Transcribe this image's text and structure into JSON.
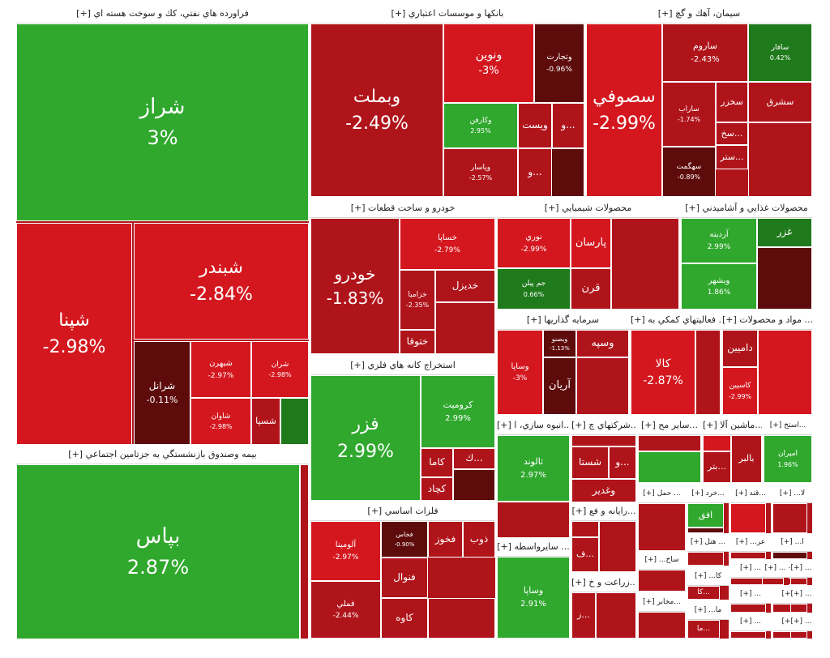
{
  "chart_data": {
    "type": "treemap",
    "colors": {
      "strong_green": "#2fa82d",
      "dark_green": "#1f7a1c",
      "red": "#b0141b",
      "bright_red": "#d4171f",
      "dark_red": "#5e0b0b",
      "border": "#ffffff"
    },
    "sectors": [
      {
        "id": "s1",
        "label": "[+] فراورده هاي نفتي، كك و سوخت هسته اي",
        "cells": [
          {
            "sym": "شراز",
            "pct": "3%",
            "value": 3
          },
          {
            "sym": "شپنا",
            "pct": "-2.98%",
            "value": -2.98
          },
          {
            "sym": "شبندر",
            "pct": "-2.84%",
            "value": -2.84
          },
          {
            "sym": "شرانل",
            "pct": "-0.11%",
            "value": -0.11
          },
          {
            "sym": "شبهرن",
            "pct": "-2.97%",
            "value": -2.97
          },
          {
            "sym": "شاوان",
            "pct": "-2.98%",
            "value": -2.98
          },
          {
            "sym": "شران",
            "pct": "-2.98%",
            "value": -2.98
          },
          {
            "sym": "شسپا",
            "pct": "",
            "value": -2.5
          }
        ]
      },
      {
        "id": "s2",
        "label": "[+] بيمه وصندوق بازنشستگي به جزتامين اجتماعي",
        "cells": [
          {
            "sym": "بپاس",
            "pct": "2.87%",
            "value": 2.87
          }
        ]
      },
      {
        "id": "s3",
        "label": "[+] بانكها و موسسات اعتباري",
        "cells": [
          {
            "sym": "وبملت",
            "pct": "-2.49%",
            "value": -2.49
          },
          {
            "sym": "ونوين",
            "pct": "-3%",
            "value": -3
          },
          {
            "sym": "وتجارت",
            "pct": "-0.96%",
            "value": -0.96
          },
          {
            "sym": "وكارفن",
            "pct": "2.95%",
            "value": 2.95
          },
          {
            "sym": "ويست",
            "pct": "",
            "value": -2.6
          },
          {
            "sym": "و...",
            "pct": "",
            "value": -2.4
          },
          {
            "sym": "وپاسار",
            "pct": "-2.57%",
            "value": -2.57
          },
          {
            "sym": "و...",
            "pct": "",
            "value": -2.4
          }
        ]
      },
      {
        "id": "s4",
        "label": "[+] سيمان، آهك و گچ",
        "cells": [
          {
            "sym": "سصوفي",
            "pct": "-2.99%",
            "value": -2.99
          },
          {
            "sym": "ساروم",
            "pct": "-2.43%",
            "value": -2.43
          },
          {
            "sym": "سافار",
            "pct": "0.42%",
            "value": 0.42
          },
          {
            "sym": "سخزر",
            "pct": "",
            "value": -2.5
          },
          {
            "sym": "سشرق",
            "pct": "",
            "value": -2.6
          },
          {
            "sym": "ساراب",
            "pct": "-1.74%",
            "value": -1.74
          },
          {
            "sym": "سخ...",
            "pct": "",
            "value": -2.3
          },
          {
            "sym": "ستر...",
            "pct": "",
            "value": -2.4
          },
          {
            "sym": "سهگمت",
            "pct": "-0.89%",
            "value": -0.89
          }
        ]
      },
      {
        "id": "s5",
        "label": "[+] خودرو و ساخت قطعات",
        "cells": [
          {
            "sym": "خودرو",
            "pct": "-1.83%",
            "value": -1.83
          },
          {
            "sym": "خساپا",
            "pct": "-2.79%",
            "value": -2.79
          },
          {
            "sym": "خديزل",
            "pct": "",
            "value": -2.6
          },
          {
            "sym": "خزاميا",
            "pct": "-2.35%",
            "value": -2.35
          },
          {
            "sym": "ختوقا",
            "pct": "",
            "value": -2.5
          }
        ]
      },
      {
        "id": "s6",
        "label": "[+] محصولات شيميايي",
        "cells": [
          {
            "sym": "نوري",
            "pct": "-2.99%",
            "value": -2.99
          },
          {
            "sym": "پارسان",
            "pct": "",
            "value": -2.7
          },
          {
            "sym": "جم پيلن",
            "pct": "0.66%",
            "value": 0.66
          },
          {
            "sym": "قرن",
            "pct": "",
            "value": -2.5
          }
        ]
      },
      {
        "id": "s7",
        "label": "[+] محصولات غذايي و آشاميدني",
        "cells": [
          {
            "sym": "آردينه",
            "pct": "2.99%",
            "value": 2.99
          },
          {
            "sym": "غزر",
            "pct": "",
            "value": 0.9
          },
          {
            "sym": "وبشهر",
            "pct": "1.86%",
            "value": 1.86
          }
        ]
      },
      {
        "id": "s8",
        "label": "[+] سرمايه گذاريها",
        "cells": [
          {
            "sym": "وساپا",
            "pct": "-3%",
            "value": -3
          },
          {
            "sym": "وبصنو",
            "pct": "-1.13%",
            "value": -1.13
          },
          {
            "sym": "وسپه",
            "pct": "",
            "value": -2.6
          },
          {
            "sym": "آريان",
            "pct": "",
            "value": -1.2
          }
        ]
      },
      {
        "id": "s9",
        "label": "[+] فعاليتهاي كمكي به ...",
        "cells": [
          {
            "sym": "كالا",
            "pct": "-2.87%",
            "value": -2.87
          }
        ]
      },
      {
        "id": "s10",
        "label": "[+] مواد و محصولات ...",
        "cells": [
          {
            "sym": "داميين",
            "pct": "",
            "value": -2.6
          },
          {
            "sym": "كاسپين",
            "pct": "-2.99%",
            "value": -2.99
          }
        ]
      },
      {
        "id": "s11",
        "label": "[+] استخراج كانه هاي فلزي",
        "cells": [
          {
            "sym": "فزر",
            "pct": "2.99%",
            "value": 2.99
          },
          {
            "sym": "كروميت",
            "pct": "2.99%",
            "value": 2.99
          },
          {
            "sym": "ك...",
            "pct": "",
            "value": -2.4
          },
          {
            "sym": "كاما",
            "pct": "",
            "value": -2.6
          },
          {
            "sym": "كچاد",
            "pct": "",
            "value": -2.5
          }
        ]
      },
      {
        "id": "s12",
        "label": "[+] فلزات اساسي",
        "cells": [
          {
            "sym": "آلومينا",
            "pct": "-2.97%",
            "value": -2.97
          },
          {
            "sym": "فخاس",
            "pct": "-0.90%",
            "value": -0.9
          },
          {
            "sym": "فخوز",
            "pct": "",
            "value": -2.5
          },
          {
            "sym": "ذوب",
            "pct": "",
            "value": -2.6
          },
          {
            "sym": "فنوال",
            "pct": "",
            "value": -2.4
          },
          {
            "sym": "فملي",
            "pct": "-2.44%",
            "value": -2.44
          },
          {
            "sym": "كاوه",
            "pct": "",
            "value": -2.5
          }
        ]
      },
      {
        "id": "s13",
        "label": "[+] انبوه سازي، ا...",
        "cells": [
          {
            "sym": "ثالوند",
            "pct": "2.97%",
            "value": 2.97
          }
        ]
      },
      {
        "id": "s14",
        "label": "[+] شركتهاي چ...",
        "cells": [
          {
            "sym": "شستا",
            "pct": "",
            "value": -2.6
          },
          {
            "sym": "و...",
            "pct": "",
            "value": -2.4
          },
          {
            "sym": "وغدير",
            "pct": "",
            "value": -2.5
          }
        ]
      },
      {
        "id": "s15",
        "label": "[+] ساير مح...",
        "cells": []
      },
      {
        "id": "s16",
        "label": "[+] ماشين آلا...",
        "cells": [
          {
            "sym": "بتر...",
            "pct": "",
            "value": -2.5
          },
          {
            "sym": "بالبر",
            "pct": "",
            "value": -2.5
          }
        ]
      },
      {
        "id": "s17",
        "label": "[+] استخ...",
        "cells": [
          {
            "sym": "اميران",
            "pct": "1.96%",
            "value": 1.96
          }
        ]
      },
      {
        "id": "s18",
        "label": "[+] سايرواسطه ...",
        "cells": [
          {
            "sym": "وساپا",
            "pct": "2.91%",
            "value": 2.91
          }
        ]
      },
      {
        "id": "s19",
        "label": "[+] رايانه و فع...",
        "cells": [
          {
            "sym": "ف...",
            "pct": "",
            "value": -2.5
          }
        ]
      },
      {
        "id": "s20",
        "label": "[+] زراعت و خ...",
        "cells": [
          {
            "sym": "ز...",
            "pct": "",
            "value": -2.5
          }
        ]
      },
      {
        "id": "s21",
        "label": "[+] حمل ...",
        "cells": []
      },
      {
        "id": "s22",
        "label": "[+] خرد...",
        "cells": [
          {
            "sym": "افق",
            "pct": "",
            "value": 1.5
          }
        ]
      },
      {
        "id": "s23",
        "label": "[+] قند...",
        "cells": []
      },
      {
        "id": "s24",
        "label": "[+] ...لا",
        "cells": []
      },
      {
        "id": "s25",
        "label": "[+] ...ساخ",
        "cells": []
      },
      {
        "id": "s26",
        "label": "[+] هتل ...",
        "cells": []
      },
      {
        "id": "s27",
        "label": "[+] ...عر",
        "cells": []
      },
      {
        "id": "s28",
        "label": "[+] ...ا",
        "cells": []
      },
      {
        "id": "s29",
        "label": "[+] مخابر...",
        "cells": []
      },
      {
        "id": "s30",
        "label": "[+] ...كا",
        "cells": [
          {
            "sym": "كا...",
            "pct": "",
            "value": -2.5
          }
        ]
      },
      {
        "id": "s31",
        "label": "[+] ...ما",
        "cells": [
          {
            "sym": "ما...",
            "pct": "",
            "value": -2.5
          }
        ]
      },
      {
        "id": "s32",
        "label": "[+] ...",
        "cells": []
      },
      {
        "id": "s33",
        "label": "[+] ...",
        "cells": []
      },
      {
        "id": "s34",
        "label": "[+] ...",
        "cells": []
      },
      {
        "id": "s35",
        "label": "[+] ...",
        "cells": []
      },
      {
        "id": "s36",
        "label": "[+] ...",
        "cells": []
      },
      {
        "id": "s37",
        "label": "[+] ...",
        "cells": []
      },
      {
        "id": "s38",
        "label": "[+] ...",
        "cells": []
      },
      {
        "id": "s39",
        "label": "[+] ...",
        "cells": []
      },
      {
        "id": "s40",
        "label": "[+] ...",
        "cells": []
      },
      {
        "id": "s41",
        "label": "[+] ...",
        "cells": []
      }
    ]
  }
}
